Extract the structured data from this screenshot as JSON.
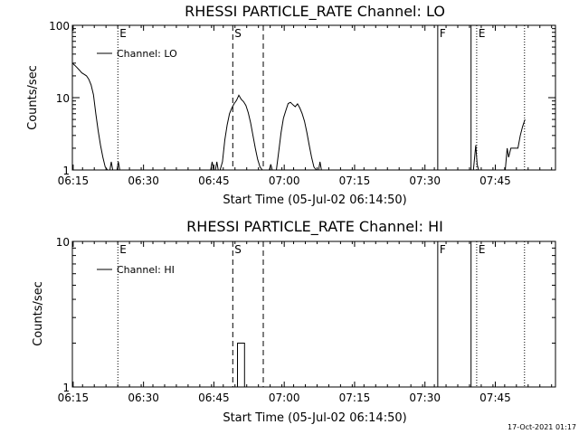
{
  "timestamp": "17-Oct-2021 01:17",
  "chart_data": [
    {
      "type": "line",
      "title": "RHESSI PARTICLE_RATE Channel: LO",
      "xlabel": "Start Time (05-Jul-02 06:14:50)",
      "ylabel": "Counts/sec",
      "yscale": "log",
      "ylim": [
        1,
        100
      ],
      "xlim_minutes": [
        0,
        103
      ],
      "x_tick_labels": [
        "06:15",
        "06:30",
        "06:45",
        "07:00",
        "07:15",
        "07:30",
        "07:45"
      ],
      "x_tick_minutes": [
        0.17,
        15.17,
        30.17,
        45.17,
        60.17,
        75.17,
        90.17
      ],
      "y_tick_labels": [
        "1",
        "10",
        "100"
      ],
      "y_tick_values": [
        1,
        10,
        100
      ],
      "legend": "Channel: LO",
      "series": [
        {
          "name": "Channel: LO",
          "segments": [
            {
              "x": [
                0,
                0.5,
                1,
                1.5,
                2,
                2.5,
                3,
                3.5,
                4,
                4.5,
                5,
                5.5,
                6,
                6.5,
                7,
                7.5
              ],
              "y": [
                30,
                28,
                26,
                24,
                22,
                21,
                20,
                18,
                15,
                11,
                6,
                3.5,
                2.2,
                1.5,
                1.1,
                1
              ]
            },
            {
              "x": [
                8,
                8.3,
                8.6
              ],
              "y": [
                1,
                1.3,
                1
              ]
            },
            {
              "x": [
                9.5,
                9.8,
                10.1
              ],
              "y": [
                1,
                1.3,
                1
              ]
            },
            {
              "x": [
                29.5,
                29.8,
                30.1
              ],
              "y": [
                1,
                1.3,
                1
              ]
            },
            {
              "x": [
                30.5,
                30.8,
                31.1
              ],
              "y": [
                1,
                1.3,
                1
              ]
            },
            {
              "x": [
                31.5,
                32,
                32.5,
                33,
                33.5,
                34,
                34.5,
                35,
                35.5,
                36,
                36.5,
                37,
                37.5,
                38,
                38.5,
                39,
                39.5,
                40,
                40.5
              ],
              "y": [
                1,
                1.3,
                2.6,
                4.2,
                6,
                7.2,
                8.3,
                9.2,
                10.8,
                9.5,
                8.8,
                7.8,
                6.2,
                4.5,
                3,
                2,
                1.4,
                1.1,
                1
              ]
            },
            {
              "x": [
                42,
                42.3,
                42.6
              ],
              "y": [
                1,
                1.2,
                1
              ]
            },
            {
              "x": [
                43.5,
                44,
                44.5,
                45,
                45.5,
                46,
                46.5,
                47,
                47.5,
                48,
                48.5,
                49,
                49.5,
                50,
                50.5,
                51,
                51.5,
                52
              ],
              "y": [
                1,
                1.8,
                3.3,
                5.2,
                6.6,
                8.3,
                8.6,
                8,
                7.5,
                8.2,
                7.2,
                6,
                4.7,
                3.3,
                2.2,
                1.5,
                1.1,
                1
              ]
            },
            {
              "x": [
                52.5,
                52.8,
                53.1
              ],
              "y": [
                1,
                1.3,
                1
              ]
            },
            {
              "x": [
                85.5,
                86,
                86.3,
                86.6
              ],
              "y": [
                1,
                2.2,
                1.2,
                1
              ]
            },
            {
              "x": [
                92.3,
                92.7,
                93,
                93.5,
                94,
                94.5,
                95,
                95.5,
                96,
                96.5
              ],
              "y": [
                1,
                2,
                1.5,
                2,
                2,
                2,
                2,
                3,
                4,
                5
              ]
            }
          ]
        }
      ],
      "markers": [
        {
          "label": "E",
          "style": "dotted",
          "x": 9.7
        },
        {
          "label": "S",
          "style": "dashed",
          "x": 34.2
        },
        {
          "label": "",
          "style": "dashed",
          "x": 40.7
        },
        {
          "label": "F",
          "style": "solid",
          "x": 77.9
        },
        {
          "label": "",
          "style": "solid",
          "x": 85
        },
        {
          "label": "E",
          "style": "dotted",
          "x": 86.2
        },
        {
          "label": "",
          "style": "dotted",
          "x": 96.4
        }
      ]
    },
    {
      "type": "line",
      "title": "RHESSI PARTICLE_RATE Channel: HI",
      "xlabel": "Start Time (05-Jul-02 06:14:50)",
      "ylabel": "Counts/sec",
      "yscale": "log",
      "ylim": [
        1,
        10
      ],
      "xlim_minutes": [
        0,
        103
      ],
      "x_tick_labels": [
        "06:15",
        "06:30",
        "06:45",
        "07:00",
        "07:15",
        "07:30",
        "07:45"
      ],
      "x_tick_minutes": [
        0.17,
        15.17,
        30.17,
        45.17,
        60.17,
        75.17,
        90.17
      ],
      "y_tick_labels": [
        "1",
        "10"
      ],
      "y_tick_values": [
        1,
        10
      ],
      "legend": "Channel: HI",
      "series": [
        {
          "name": "Channel: HI",
          "segments": [
            {
              "x": [
                35.2,
                35.2,
                36.7,
                36.7
              ],
              "y": [
                1,
                2,
                2,
                1
              ]
            }
          ]
        }
      ],
      "markers": [
        {
          "label": "E",
          "style": "dotted",
          "x": 9.7
        },
        {
          "label": "S",
          "style": "dashed",
          "x": 34.2
        },
        {
          "label": "",
          "style": "dashed",
          "x": 40.7
        },
        {
          "label": "F",
          "style": "solid",
          "x": 77.9
        },
        {
          "label": "",
          "style": "solid",
          "x": 85
        },
        {
          "label": "E",
          "style": "dotted",
          "x": 86.2
        },
        {
          "label": "",
          "style": "dotted",
          "x": 96.4
        }
      ]
    }
  ]
}
